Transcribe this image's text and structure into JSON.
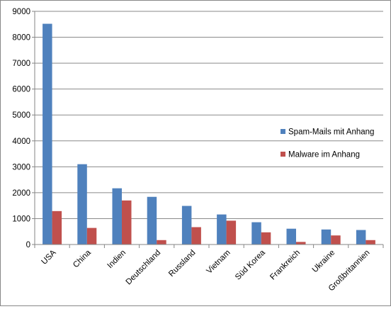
{
  "chart_data": {
    "type": "bar",
    "title": "",
    "xlabel": "",
    "ylabel": "",
    "ylim": [
      0,
      9000
    ],
    "yticks": [
      0,
      1000,
      2000,
      3000,
      4000,
      5000,
      6000,
      7000,
      8000,
      9000
    ],
    "grid": true,
    "legend_position": "right",
    "categories": [
      "USA",
      "China",
      "Indien",
      "Deutschland",
      "Russland",
      "Vietnam",
      "Süd Korea",
      "Frankreich",
      "Ukraine",
      "Großbritannien"
    ],
    "series": [
      {
        "name": "Spam-Mails mit Anhang",
        "color": "#4F81BD",
        "values": [
          8520,
          3100,
          2170,
          1840,
          1490,
          1160,
          860,
          610,
          580,
          560
        ]
      },
      {
        "name": "Malware im Anhang",
        "color": "#C0504D",
        "values": [
          1290,
          640,
          1700,
          170,
          670,
          920,
          470,
          100,
          350,
          170
        ]
      }
    ]
  }
}
